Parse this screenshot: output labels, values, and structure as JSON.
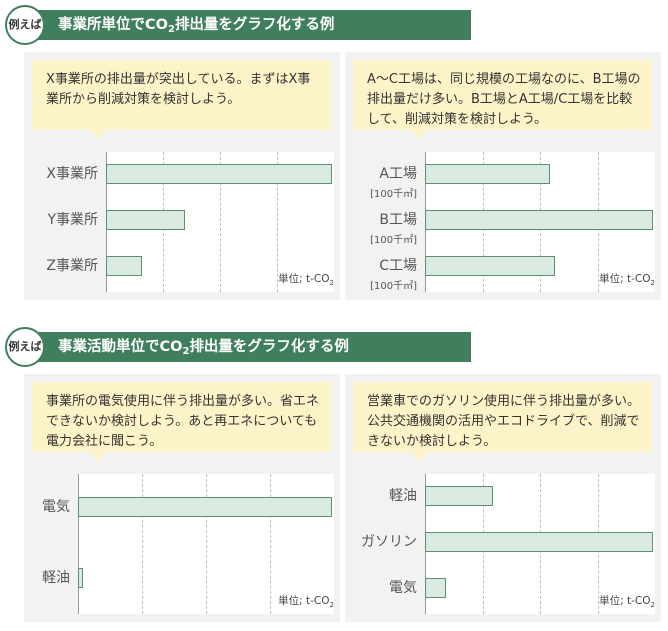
{
  "sections": [
    {
      "badge": "例えば",
      "title": {
        "pre": "事業所単位でCO",
        "sub": "2",
        "post": "排出量をグラフ化する例"
      }
    },
    {
      "badge": "例えば",
      "title": {
        "pre": "事業活動単位でCO",
        "sub": "2",
        "post": "排出量をグラフ化する例"
      }
    }
  ],
  "panels": [
    {
      "note": "X事業所の排出量が突出している。まずはX事業所から削減対策を検討しよう。"
    },
    {
      "note": "A～C工場は、同じ規模の工場なのに、B工場の排出量だけ多い。B工場とA工場/C工場を比較して、削減対策を検討しよう。"
    },
    {
      "note": "事業所の電気使用に伴う排出量が多い。省エネできないか検討しよう。あと再エネについても電力会社に聞こう。"
    },
    {
      "note": "営業車でのガソリン使用に伴う排出量が多い。公共交通機関の活用やエコドライブで、削減できないか検討しよう。"
    }
  ],
  "unit_label": {
    "pre": "単位; t-CO",
    "sub": "2"
  },
  "chart_data": [
    {
      "type": "bar",
      "orientation": "horizontal",
      "categories": [
        "X事業所",
        "Y事業所",
        "Z事業所"
      ],
      "values": [
        100,
        35,
        16
      ],
      "xlim": [
        0,
        100
      ],
      "gridlines": 3,
      "unit": "単位; t-CO2"
    },
    {
      "type": "bar",
      "orientation": "horizontal",
      "categories": [
        "A工場",
        "B工場",
        "C工場"
      ],
      "category_notes": [
        "[100千㎡]",
        "[100千㎡]",
        "[100千㎡]"
      ],
      "values": [
        55,
        100,
        57
      ],
      "xlim": [
        0,
        100
      ],
      "gridlines": 3,
      "unit": "単位; t-CO2"
    },
    {
      "type": "bar",
      "orientation": "horizontal",
      "categories": [
        "電気",
        "軽油"
      ],
      "values": [
        100,
        2
      ],
      "xlim": [
        0,
        100
      ],
      "gridlines": 3,
      "unit": "単位; t-CO2"
    },
    {
      "type": "bar",
      "orientation": "horizontal",
      "categories": [
        "軽油",
        "ガソリン",
        "電気"
      ],
      "values": [
        30,
        100,
        9
      ],
      "xlim": [
        0,
        100
      ],
      "gridlines": 3,
      "unit": "単位; t-CO2"
    }
  ]
}
